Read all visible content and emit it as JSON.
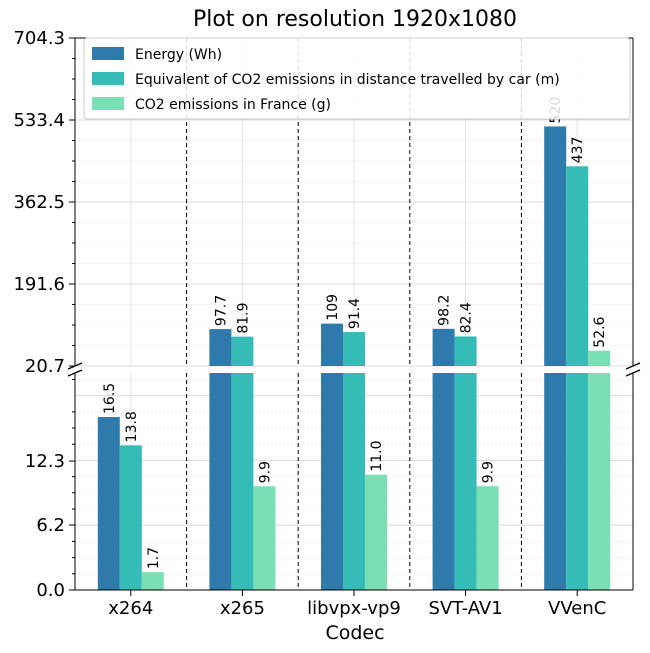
{
  "colors": {
    "energy": "#2e7bab",
    "distance": "#35bcb7",
    "co2": "#7adfb5"
  },
  "chart_data": {
    "type": "bar",
    "title": "Plot on resolution 1920x1080",
    "xlabel": "Codec",
    "ylabel": "",
    "categories": [
      "x264",
      "x265",
      "libvpx-vp9",
      "SVT-AV1",
      "VVenC"
    ],
    "series": [
      {
        "name": "Energy (Wh)",
        "values": [
          16.5,
          97.7,
          109,
          98.2,
          520
        ],
        "labels": [
          "16.5",
          "97.7",
          "109",
          "98.2",
          "520"
        ]
      },
      {
        "name": "Equivalent of CO2 emissions in distance travelled by car (m)",
        "values": [
          13.8,
          81.9,
          91.4,
          82.4,
          437
        ],
        "labels": [
          "13.8",
          "81.9",
          "91.4",
          "82.4",
          "437"
        ]
      },
      {
        "name": "CO2 emissions in France (g)",
        "values": [
          1.7,
          9.9,
          11.0,
          9.9,
          52.6
        ],
        "labels": [
          "1.7",
          "9.9",
          "11.0",
          "9.9",
          "52.6"
        ]
      }
    ],
    "broken_axis": {
      "lower": {
        "ylim": [
          0,
          20.7
        ],
        "ticks": [
          "0.0",
          "6.2",
          "12.3"
        ]
      },
      "upper": {
        "ylim": [
          20.7,
          704.3
        ],
        "ticks": [
          "20.7",
          "191.6",
          "362.5",
          "533.4",
          "704.3"
        ]
      }
    },
    "grid": true,
    "legend_position": "top"
  }
}
